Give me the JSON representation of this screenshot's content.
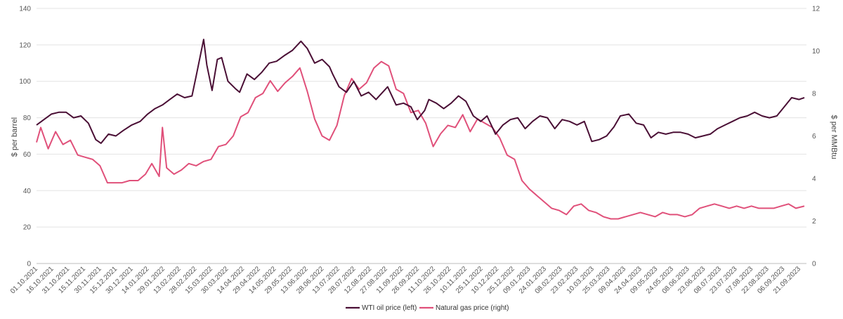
{
  "chart_data": {
    "type": "line",
    "title": "",
    "ylabel_left": "$ per barrel",
    "ylabel_right": "$ per MMBtu",
    "ylim_left": [
      0,
      140
    ],
    "ylim_right": [
      0,
      12
    ],
    "yticks_left": [
      "0",
      "20",
      "40",
      "60",
      "80",
      "100",
      "120",
      "140"
    ],
    "yticks_right": [
      "0",
      "2",
      "4",
      "6",
      "8",
      "10",
      "12"
    ],
    "grid": true,
    "legend_position": "bottom-center",
    "x_tick_labels": [
      "01.10.2021",
      "16.10.2021",
      "31.10.2021",
      "15.11.2021",
      "30.11.2021",
      "15.12.2021",
      "30.12.2021",
      "14.01.2022",
      "29.01.2022",
      "13.02.2022",
      "28.02.2022",
      "15.03.2022",
      "30.03.2022",
      "14.04.2022",
      "29.04.2022",
      "14.05.2022",
      "29.05.2022",
      "13.06.2022",
      "28.06.2022",
      "13.07.2022",
      "28.07.2022",
      "12.08.2022",
      "27.08.2022",
      "11.09.2022",
      "26.09.2022",
      "11.10.2022",
      "26.10.2022",
      "10.11.2022",
      "25.11.2022",
      "10.12.2022",
      "25.12.2022",
      "09.01.2023",
      "24.01.2023",
      "08.02.2023",
      "23.02.2023",
      "10.03.2023",
      "25.03.2023",
      "09.04.2023",
      "24.04.2023",
      "09.05.2023",
      "24.05.2023",
      "08.06.2023",
      "23.06.2023",
      "08.07.2023",
      "23.07.2023",
      "07.08.2023",
      "22.08.2023",
      "06.09.2023",
      "21.09.2023"
    ],
    "series": [
      {
        "name": "WTI oil price (left)",
        "axis": "left",
        "color": "#4a0f35",
        "x": [
          "2021-10-01",
          "2021-10-08",
          "2021-10-15",
          "2021-10-22",
          "2021-10-29",
          "2021-11-05",
          "2021-11-12",
          "2021-11-19",
          "2021-11-26",
          "2021-12-01",
          "2021-12-08",
          "2021-12-15",
          "2021-12-22",
          "2021-12-30",
          "2022-01-07",
          "2022-01-14",
          "2022-01-21",
          "2022-01-28",
          "2022-02-04",
          "2022-02-11",
          "2022-02-18",
          "2022-02-25",
          "2022-03-01",
          "2022-03-08",
          "2022-03-11",
          "2022-03-16",
          "2022-03-21",
          "2022-03-25",
          "2022-03-31",
          "2022-04-07",
          "2022-04-11",
          "2022-04-18",
          "2022-04-25",
          "2022-05-02",
          "2022-05-09",
          "2022-05-16",
          "2022-05-23",
          "2022-05-31",
          "2022-06-08",
          "2022-06-14",
          "2022-06-21",
          "2022-06-28",
          "2022-07-05",
          "2022-07-08",
          "2022-07-14",
          "2022-07-21",
          "2022-07-28",
          "2022-08-04",
          "2022-08-11",
          "2022-08-18",
          "2022-08-29",
          "2022-09-06",
          "2022-09-13",
          "2022-09-20",
          "2022-09-26",
          "2022-10-03",
          "2022-10-07",
          "2022-10-14",
          "2022-10-21",
          "2022-10-28",
          "2022-11-04",
          "2022-11-11",
          "2022-11-18",
          "2022-11-25",
          "2022-12-01",
          "2022-12-09",
          "2022-12-16",
          "2022-12-23",
          "2022-12-30",
          "2023-01-06",
          "2023-01-13",
          "2023-01-20",
          "2023-01-27",
          "2023-02-03",
          "2023-02-10",
          "2023-02-17",
          "2023-02-24",
          "2023-03-03",
          "2023-03-10",
          "2023-03-17",
          "2023-03-24",
          "2023-03-31",
          "2023-04-06",
          "2023-04-14",
          "2023-04-21",
          "2023-04-28",
          "2023-05-05",
          "2023-05-12",
          "2023-05-19",
          "2023-05-26",
          "2023-06-02",
          "2023-06-09",
          "2023-06-16",
          "2023-06-23",
          "2023-06-30",
          "2023-07-07",
          "2023-07-14",
          "2023-07-21",
          "2023-07-28",
          "2023-08-04",
          "2023-08-11",
          "2023-08-18",
          "2023-08-25",
          "2023-09-01",
          "2023-09-08",
          "2023-09-15",
          "2023-09-22",
          "2023-09-27"
        ],
        "values": [
          76,
          79,
          82,
          83,
          83,
          80,
          81,
          77,
          68,
          66,
          71,
          70,
          73,
          76,
          78,
          82,
          85,
          87,
          90,
          93,
          91,
          92,
          103,
          123,
          109,
          95,
          112,
          113,
          100,
          96,
          94,
          104,
          101,
          105,
          110,
          111,
          114,
          117,
          122,
          118,
          110,
          112,
          108,
          104,
          97,
          94,
          100,
          92,
          94,
          90,
          97,
          87,
          88,
          86,
          79,
          84,
          90,
          88,
          85,
          88,
          92,
          89,
          81,
          78,
          81,
          71,
          76,
          79,
          80,
          74,
          78,
          81,
          80,
          74,
          79,
          78,
          76,
          78,
          67,
          68,
          70,
          75,
          81,
          82,
          77,
          76,
          69,
          72,
          71,
          72,
          72,
          71,
          69,
          70,
          71,
          74,
          76,
          78,
          80,
          81,
          83,
          81,
          80,
          81,
          86,
          91,
          90,
          91
        ]
      },
      {
        "name": "Natural gas price (right)",
        "axis": "right",
        "color": "#e0507a",
        "x": [
          "2021-10-01",
          "2021-10-05",
          "2021-10-12",
          "2021-10-19",
          "2021-10-26",
          "2021-11-02",
          "2021-11-09",
          "2021-11-16",
          "2021-11-23",
          "2021-11-30",
          "2021-12-07",
          "2021-12-14",
          "2021-12-21",
          "2021-12-28",
          "2022-01-05",
          "2022-01-12",
          "2022-01-18",
          "2022-01-25",
          "2022-01-28",
          "2022-02-01",
          "2022-02-08",
          "2022-02-15",
          "2022-02-22",
          "2022-03-01",
          "2022-03-08",
          "2022-03-15",
          "2022-03-22",
          "2022-03-29",
          "2022-04-05",
          "2022-04-12",
          "2022-04-19",
          "2022-04-26",
          "2022-05-03",
          "2022-05-10",
          "2022-05-17",
          "2022-05-24",
          "2022-05-31",
          "2022-06-07",
          "2022-06-14",
          "2022-06-21",
          "2022-06-28",
          "2022-07-05",
          "2022-07-12",
          "2022-07-19",
          "2022-07-26",
          "2022-08-02",
          "2022-08-09",
          "2022-08-16",
          "2022-08-23",
          "2022-08-30",
          "2022-09-06",
          "2022-09-13",
          "2022-09-20",
          "2022-09-27",
          "2022-10-04",
          "2022-10-11",
          "2022-10-18",
          "2022-10-25",
          "2022-11-01",
          "2022-11-08",
          "2022-11-15",
          "2022-11-22",
          "2022-11-29",
          "2022-12-06",
          "2022-12-13",
          "2022-12-20",
          "2022-12-27",
          "2023-01-03",
          "2023-01-10",
          "2023-01-17",
          "2023-01-24",
          "2023-01-31",
          "2023-02-07",
          "2023-02-14",
          "2023-02-21",
          "2023-02-28",
          "2023-03-07",
          "2023-03-14",
          "2023-03-21",
          "2023-03-28",
          "2023-04-04",
          "2023-04-11",
          "2023-04-18",
          "2023-04-25",
          "2023-05-02",
          "2023-05-09",
          "2023-05-16",
          "2023-05-23",
          "2023-05-30",
          "2023-06-06",
          "2023-06-13",
          "2023-06-20",
          "2023-06-27",
          "2023-07-04",
          "2023-07-11",
          "2023-07-18",
          "2023-07-25",
          "2023-08-01",
          "2023-08-08",
          "2023-08-15",
          "2023-08-22",
          "2023-08-29",
          "2023-09-05",
          "2023-09-12",
          "2023-09-19",
          "2023-09-27"
        ],
        "values": [
          5.7,
          6.4,
          5.4,
          6.2,
          5.6,
          5.8,
          5.1,
          5.0,
          4.9,
          4.6,
          3.8,
          3.8,
          3.8,
          3.9,
          3.9,
          4.2,
          4.7,
          4.1,
          6.4,
          4.5,
          4.2,
          4.4,
          4.7,
          4.6,
          4.8,
          4.9,
          5.5,
          5.6,
          6.0,
          6.9,
          7.1,
          7.8,
          8.0,
          8.6,
          8.1,
          8.5,
          8.8,
          9.2,
          8.1,
          6.8,
          6.0,
          5.8,
          6.5,
          7.9,
          8.7,
          8.2,
          8.5,
          9.2,
          9.5,
          9.3,
          8.2,
          8.0,
          7.1,
          7.2,
          6.6,
          5.5,
          6.1,
          6.5,
          6.4,
          7.0,
          6.2,
          6.8,
          6.6,
          6.4,
          5.9,
          5.1,
          4.9,
          3.9,
          3.5,
          3.2,
          2.9,
          2.6,
          2.5,
          2.3,
          2.7,
          2.8,
          2.5,
          2.4,
          2.2,
          2.1,
          2.1,
          2.2,
          2.3,
          2.4,
          2.3,
          2.2,
          2.4,
          2.3,
          2.3,
          2.2,
          2.3,
          2.6,
          2.7,
          2.8,
          2.7,
          2.6,
          2.7,
          2.6,
          2.7,
          2.6,
          2.6,
          2.6,
          2.7,
          2.8,
          2.6,
          2.7
        ]
      }
    ]
  }
}
